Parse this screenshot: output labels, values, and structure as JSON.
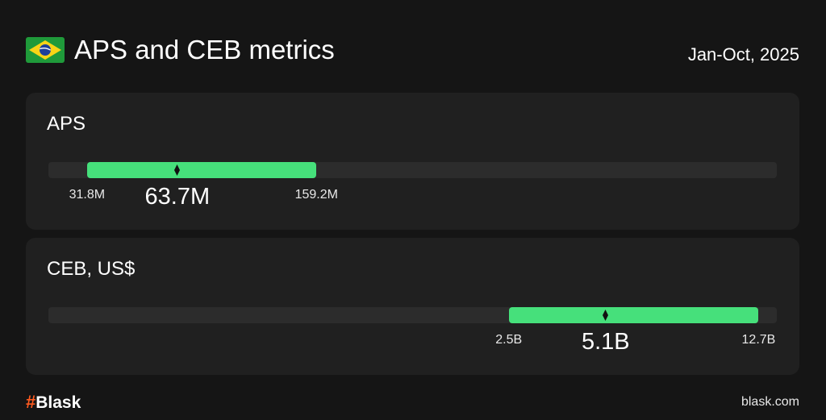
{
  "header": {
    "title": "APS and CEB metrics",
    "period": "Jan-Oct, 2025",
    "flag_icon": "brazil-flag-icon"
  },
  "colors": {
    "background": "#151515",
    "card": "#202020",
    "track": "#2c2c2c",
    "range": "#46e07b",
    "logo_accent": "#ff5a1f"
  },
  "chart_data": [
    {
      "type": "bar",
      "title": "APS",
      "min_label": "31.8M",
      "value_label": "63.7M",
      "max_label": "159.2M",
      "min": 31.8,
      "value": 63.7,
      "max": 159.2,
      "range_start_fraction": 0.053,
      "range_end_fraction": 0.368,
      "value_fraction": 0.177
    },
    {
      "type": "bar",
      "title": "CEB, US$",
      "min_label": "2.5B",
      "value_label": "5.1B",
      "max_label": "12.7B",
      "min": 2.5,
      "value": 5.1,
      "max": 12.7,
      "range_start_fraction": 0.632,
      "range_end_fraction": 0.975,
      "value_fraction": 0.765
    }
  ],
  "footer": {
    "logo_hash": "#",
    "logo_text": "Blask",
    "url": "blask.com"
  }
}
